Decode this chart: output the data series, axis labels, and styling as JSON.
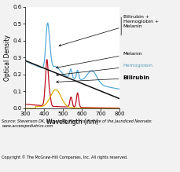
{
  "xlim": [
    300,
    800
  ],
  "ylim": [
    0.0,
    0.6
  ],
  "xlabel": "Wavelength (nm)",
  "ylabel": "Optical Density",
  "xticks": [
    300,
    400,
    500,
    600,
    700,
    800
  ],
  "yticks": [
    0.0,
    0.1,
    0.2,
    0.3,
    0.4,
    0.5,
    0.6
  ],
  "source_text": "Source: Stevenson DK, Maisels MJ, Watchko JF: Care of the Jaundiced Neonate:\nwww.accesspediatrics.com",
  "copyright_text": "Copyright © The McGraw-Hill Companies, Inc. All rights reserved.",
  "colors": {
    "bhm": "#55aadd",
    "melanin": "#111111",
    "hemoglobin": "#bb1122",
    "bilirubin": "#ddaa00"
  }
}
